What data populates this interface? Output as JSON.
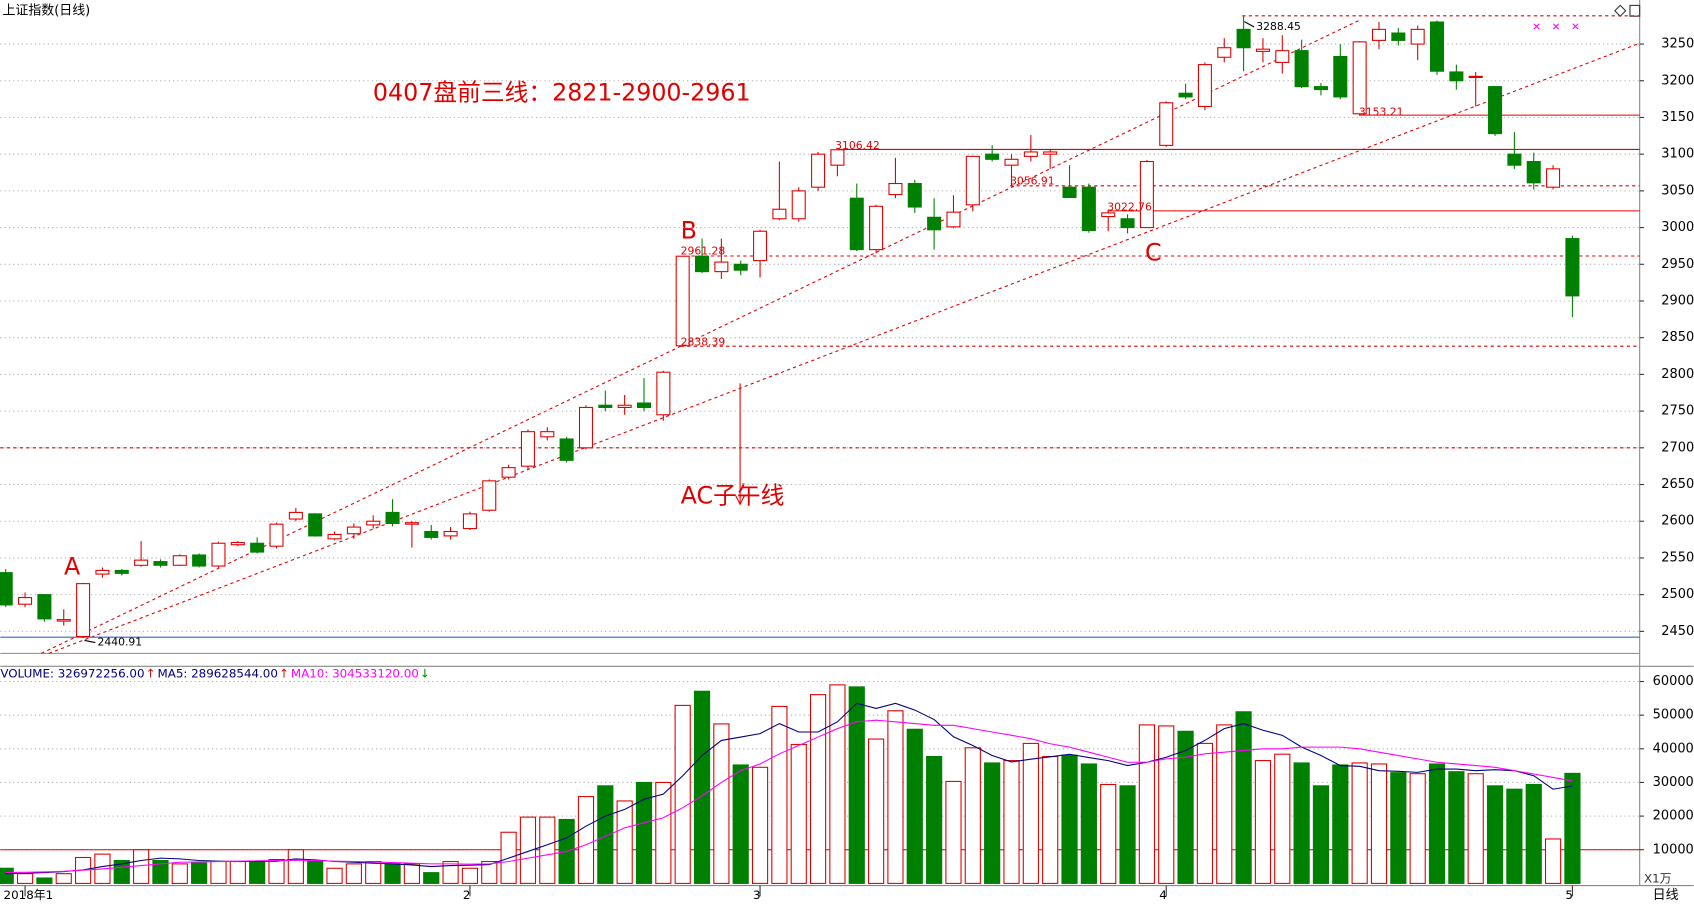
{
  "chart_data": {
    "type": "candlestick",
    "title": "上证指数(日线)",
    "period_label": "日线",
    "volume_unit": "X1万",
    "categories": [
      null,
      "2018年1",
      null,
      null,
      null,
      null,
      null,
      null,
      null,
      null,
      null,
      null,
      null,
      null,
      null,
      null,
      null,
      null,
      null,
      null,
      null,
      null,
      null,
      null,
      "2",
      null,
      null,
      null,
      null,
      null,
      null,
      null,
      null,
      null,
      null,
      null,
      null,
      null,
      null,
      "3",
      null,
      null,
      null,
      null,
      null,
      null,
      null,
      null,
      null,
      null,
      null,
      null,
      null,
      null,
      null,
      null,
      null,
      null,
      null,
      null,
      "4",
      null,
      null,
      null,
      null,
      null,
      null,
      null,
      null,
      null,
      null,
      null,
      null,
      null,
      null,
      null,
      null,
      null,
      null,
      null,
      null,
      "5"
    ],
    "open": [
      2530,
      2487,
      2500,
      2464,
      2443,
      2528,
      2533,
      2540,
      2545,
      2540,
      2554,
      2539,
      2568,
      2570,
      2566,
      2603,
      2610,
      2576,
      2583,
      2595,
      2612,
      2596,
      2586,
      2580,
      2590,
      2615,
      2660,
      2675,
      2715,
      2712,
      2700,
      2758,
      2755,
      2761,
      2745,
      2839,
      2961,
      2940,
      2950,
      2955,
      3012,
      3012,
      3055,
      3085,
      3040,
      2970,
      3045,
      3060,
      3014,
      3001,
      3031,
      3100,
      3085,
      3097,
      3100,
      3055,
      3055,
      3015,
      3012,
      3000,
      3112,
      3183,
      3165,
      3232,
      3270,
      3240,
      3225,
      3241,
      3192,
      3233,
      3155,
      3255,
      3265,
      3250,
      3280,
      3212,
      3205,
      3192,
      3100,
      3090,
      3055,
      2985
    ],
    "high": [
      2535,
      2503,
      2501,
      2480,
      2516,
      2537,
      2535,
      2573,
      2548,
      2555,
      2556,
      2572,
      2573,
      2578,
      2598,
      2618,
      2611,
      2586,
      2597,
      2608,
      2630,
      2600,
      2595,
      2592,
      2613,
      2657,
      2677,
      2725,
      2728,
      2715,
      2758,
      2778,
      2772,
      2795,
      2805,
      2961.28,
      2985,
      2985,
      2955,
      2997,
      3090,
      3055,
      3103,
      3106.42,
      3060,
      3031,
      3095,
      3065,
      3040,
      3044,
      3098,
      3112,
      3100,
      3126,
      3106,
      3085,
      3060,
      3022.76,
      3018,
      3092,
      3172,
      3196,
      3225,
      3258,
      3288.45,
      3258,
      3262,
      3256,
      3197,
      3250,
      3254,
      3280,
      3272,
      3275,
      3282,
      3222,
      3212,
      3193,
      3130,
      3102,
      3085,
      2989
    ],
    "low": [
      2483,
      2483,
      2463,
      2458,
      2440.91,
      2523,
      2526,
      2538,
      2537,
      2539,
      2537,
      2537,
      2566,
      2556,
      2563,
      2600,
      2579,
      2574,
      2576,
      2590,
      2593,
      2564,
      2575,
      2575,
      2588,
      2613,
      2657,
      2670,
      2710,
      2680,
      2698,
      2750,
      2745,
      2750,
      2737,
      2838.39,
      2938,
      2930,
      2935,
      2932,
      3010,
      3008,
      3050,
      3070,
      2968,
      2965,
      3040,
      3020,
      2970,
      2999,
      3022,
      3090,
      3056.91,
      3090,
      3080,
      3040,
      2993,
      2995,
      2992,
      3000,
      3110,
      3175,
      3160,
      3225,
      3213,
      3225,
      3210,
      3190,
      3180,
      3175,
      3153.21,
      3243,
      3248,
      3228,
      3208,
      3188,
      3165,
      3125,
      3080,
      3052,
      3052,
      2878
    ],
    "close": [
      2486,
      2496,
      2467,
      2466,
      2515,
      2533,
      2529,
      2547,
      2540,
      2553,
      2539,
      2570,
      2571,
      2558,
      2596,
      2612,
      2580,
      2582,
      2592,
      2600,
      2597,
      2598,
      2578,
      2586,
      2610,
      2655,
      2673,
      2722,
      2722,
      2683,
      2755,
      2755,
      2758,
      2755,
      2803,
      2961,
      2940,
      2953,
      2942,
      2995,
      3025,
      3050,
      3100,
      3106,
      2970,
      3029,
      3060,
      3028,
      2997,
      3021,
      3097,
      3093,
      3093,
      3103,
      3103,
      3041,
      2996,
      3020,
      3000,
      3090,
      3170,
      3178,
      3222,
      3245,
      3245,
      3243,
      3241,
      3192,
      3188,
      3178,
      3253,
      3270,
      3255,
      3270,
      3213,
      3200,
      3206,
      3128,
      3085,
      3061,
      3080,
      2907
    ],
    "up_color": "#e00000",
    "down_color": "#008000",
    "ylim": [
      2420,
      3310
    ],
    "yticks": [
      2450,
      2500,
      2550,
      2600,
      2650,
      2700,
      2750,
      2800,
      2850,
      2900,
      2950,
      3000,
      3050,
      3100,
      3150,
      3200,
      3250
    ],
    "volume": [
      4500,
      2900,
      1600,
      2900,
      7700,
      8700,
      6800,
      10000,
      6800,
      5800,
      6100,
      6500,
      6500,
      6500,
      7100,
      10000,
      6500,
      4500,
      5800,
      6500,
      5800,
      5800,
      3200,
      6500,
      4500,
      6500,
      15200,
      19700,
      19700,
      19000,
      25800,
      29000,
      24500,
      30000,
      30000,
      52900,
      57100,
      47400,
      35200,
      34500,
      52600,
      41300,
      56100,
      59000,
      58400,
      42900,
      51300,
      45800,
      37700,
      30300,
      40300,
      35800,
      36500,
      41600,
      37700,
      38100,
      35500,
      29400,
      29000,
      47100,
      46800,
      45200,
      41600,
      47100,
      51000,
      36500,
      38400,
      35800,
      29000,
      35200,
      35800,
      35500,
      32900,
      32600,
      35500,
      33200,
      32600,
      29000,
      28000,
      29400,
      13200,
      32697
    ],
    "ma_series": [
      {
        "name": "MA5",
        "color": "#000080",
        "values": [
          2900,
          3000,
          3200,
          3500,
          4000,
          5000,
          5800,
          6800,
          7500,
          7300,
          6800,
          6600,
          6500,
          6500,
          6600,
          7300,
          7000,
          6500,
          6300,
          6000,
          5800,
          5500,
          5000,
          5300,
          5400,
          5600,
          7500,
          9500,
          11500,
          13500,
          17000,
          20000,
          22000,
          25000,
          26500,
          32000,
          38000,
          42500,
          43500,
          44500,
          47500,
          45000,
          45000,
          48000,
          53500,
          52000,
          53500,
          51500,
          48700,
          43600,
          41000,
          38000,
          36100,
          36900,
          37600,
          38400,
          37400,
          36500,
          35000,
          36000,
          37500,
          39500,
          42500,
          46000,
          47500,
          45500,
          44000,
          40500,
          38000,
          35000,
          34800,
          33500,
          33300,
          33000,
          34000,
          34000,
          33500,
          33800,
          33500,
          32000,
          28000,
          28963
        ]
      },
      {
        "name": "MA10",
        "color": "#ff00ff",
        "values": [
          3200,
          3300,
          3400,
          3600,
          3900,
          4300,
          4800,
          5300,
          5800,
          6300,
          6400,
          6500,
          6600,
          6700,
          6800,
          6900,
          6800,
          6600,
          6500,
          6400,
          6200,
          6000,
          5800,
          5800,
          5700,
          5800,
          6500,
          7500,
          8500,
          9500,
          11500,
          14000,
          16500,
          18000,
          19500,
          22500,
          26000,
          30000,
          33500,
          35500,
          38500,
          41000,
          43500,
          46000,
          48000,
          48500,
          48000,
          47500,
          47000,
          47000,
          46000,
          45000,
          44000,
          43000,
          41500,
          40500,
          39000,
          37500,
          36000,
          36000,
          37000,
          37500,
          38500,
          39000,
          39500,
          40000,
          40000,
          40500,
          40500,
          40500,
          40000,
          39000,
          38000,
          37000,
          36000,
          35500,
          35000,
          34500,
          33500,
          32500,
          31500,
          30453
        ]
      }
    ],
    "volume_ylim": [
      0,
      63548
    ],
    "volume_yticks": [
      10000,
      20000,
      30000,
      40000,
      50000,
      60000
    ],
    "volume_legend": [
      {
        "label": "VOLUME: 326972256.00",
        "arrow": "↑",
        "color": "#000080"
      },
      {
        "label": "MA5: 289628544.00",
        "arrow": "↑",
        "color": "#000080"
      },
      {
        "label": "MA10: 304533120.00",
        "arrow": "↓",
        "color": "#ff00ff"
      }
    ],
    "reference_lines": [
      {
        "value": 3288.45,
        "style": "dashed"
      },
      {
        "value": 3153.21,
        "style": "solid"
      },
      {
        "value": 3106.42,
        "style": "solid"
      },
      {
        "value": 3056.91,
        "style": "dashed"
      },
      {
        "value": 3022.76,
        "style": "solid"
      },
      {
        "value": 2961.28,
        "style": "dashed"
      },
      {
        "value": 2838.39,
        "style": "dashed"
      },
      {
        "value": 2700,
        "style": "dashed"
      },
      {
        "value": 2442,
        "style": "solid",
        "color": "#3366cc"
      }
    ],
    "price_labels": [
      2440.91,
      2838.39,
      2961.28,
      3106.42,
      3056.91,
      3022.76,
      3153.21,
      3288.45
    ],
    "annotations": [
      "0407盘前三线：2821-2900-2961",
      "A",
      "B",
      "C",
      "AC子午线"
    ]
  }
}
